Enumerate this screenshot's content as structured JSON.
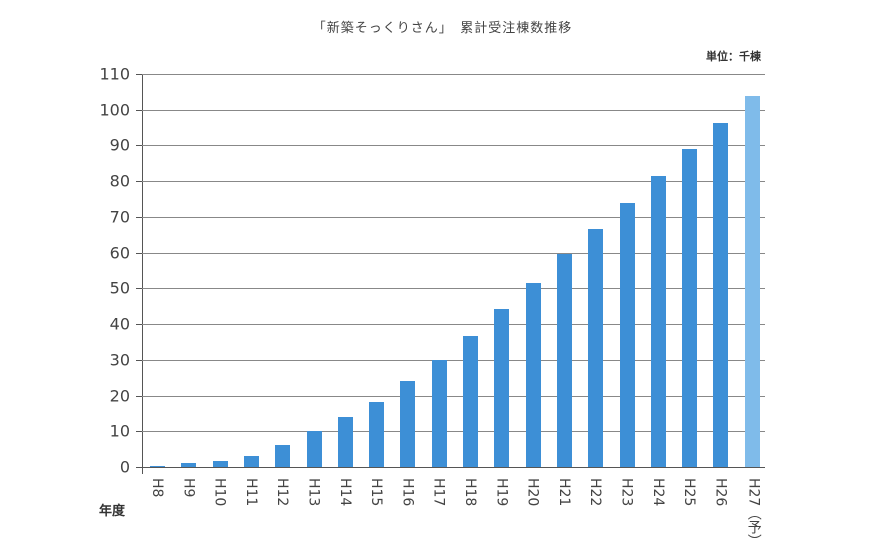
{
  "title": "「新築そっくりさん」　累計受注棟数推移",
  "unit_label": "単位：千棟",
  "x_axis_label": "年度",
  "colors": {
    "bar": "#3d8fd6",
    "bar_forecast": "#7fbbea",
    "grid": "#888888"
  },
  "chart_data": {
    "type": "bar",
    "title": "「新築そっくりさん」 累計受注棟数推移",
    "xlabel": "年度",
    "ylabel": "単位：千棟",
    "ylim": [
      0,
      110
    ],
    "yticks": [
      0,
      10,
      20,
      30,
      40,
      50,
      60,
      70,
      80,
      90,
      100,
      110
    ],
    "grid": true,
    "categories": [
      "H8",
      "H9",
      "H10",
      "H11",
      "H12",
      "H13",
      "H14",
      "H15",
      "H16",
      "H17",
      "H18",
      "H19",
      "H20",
      "H21",
      "H22",
      "H23",
      "H24",
      "H25",
      "H26",
      "H27（予）"
    ],
    "values": [
      0.3,
      1.0,
      1.7,
      3.2,
      6.2,
      10.0,
      14.0,
      18.3,
      24.0,
      30.0,
      36.7,
      44.3,
      51.5,
      59.5,
      66.5,
      73.8,
      81.5,
      89.0,
      96.2,
      103.8
    ],
    "annotations": [
      "H27 is a forecast (予), shown in lighter blue"
    ]
  }
}
